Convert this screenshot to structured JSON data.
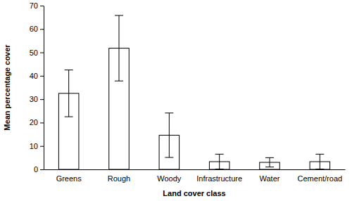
{
  "chart_data": {
    "type": "bar",
    "x_label": "Land cover class",
    "y_label": "Mean percentage cover",
    "categories": [
      "Greens",
      "Rough",
      "Woody",
      "Infrastructure",
      "Water",
      "Cement/road"
    ],
    "values": [
      32.5,
      51.8,
      14.6,
      3.3,
      3.0,
      3.3
    ],
    "errors": [
      10.0,
      14.0,
      9.5,
      3.2,
      2.0,
      3.2
    ],
    "color": "#ffffff",
    "ylim": [
      0,
      70
    ],
    "yticks": [
      0,
      10,
      20,
      30,
      40,
      50,
      60,
      70
    ],
    "grid": false
  }
}
